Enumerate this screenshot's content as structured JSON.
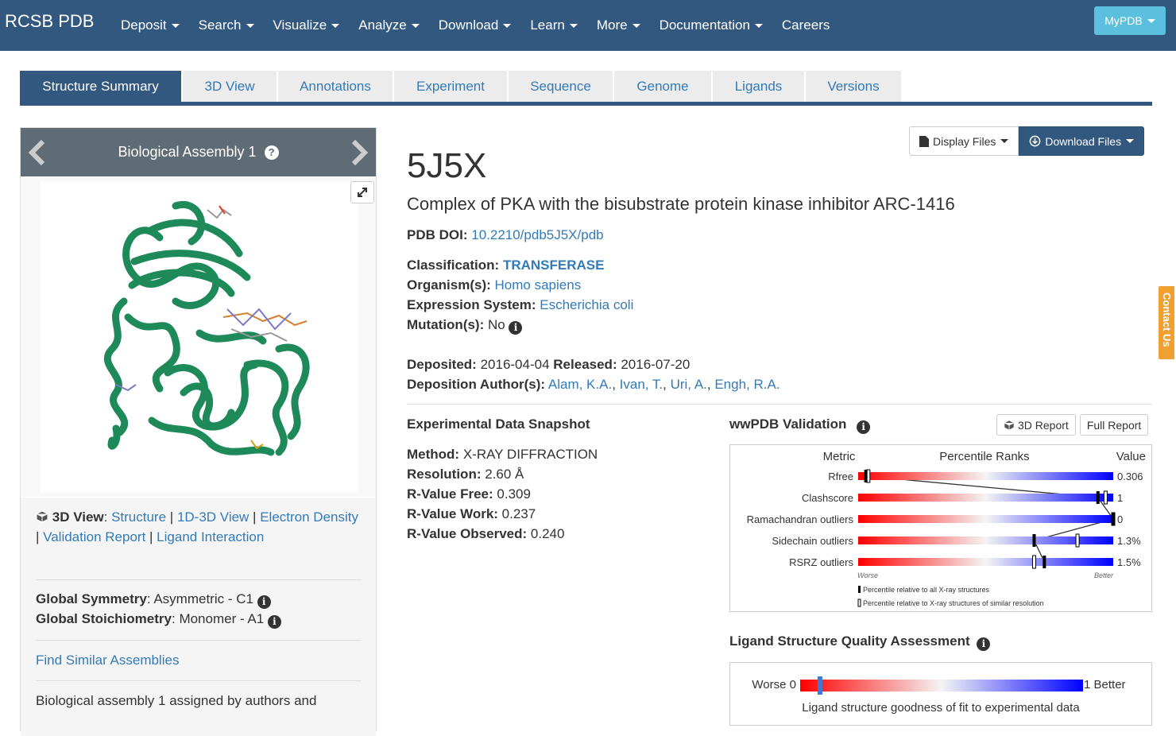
{
  "navbar": {
    "brand": "RCSB PDB",
    "items": [
      {
        "label": "Deposit",
        "caret": true
      },
      {
        "label": "Search",
        "caret": true
      },
      {
        "label": "Visualize",
        "caret": true
      },
      {
        "label": "Analyze",
        "caret": true
      },
      {
        "label": "Download",
        "caret": true
      },
      {
        "label": "Learn",
        "caret": true
      },
      {
        "label": "More",
        "caret": true
      },
      {
        "label": "Documentation",
        "caret": true
      },
      {
        "label": "Careers",
        "caret": false
      }
    ],
    "mypdb": "MyPDB"
  },
  "tabs": [
    "Structure Summary",
    "3D View",
    "Annotations",
    "Experiment",
    "Sequence",
    "Genome",
    "Ligands",
    "Versions"
  ],
  "assembly": {
    "title": "Biological Assembly 1",
    "help": "?",
    "view_label": "3D View",
    "view_links": [
      "Structure",
      "1D-3D View",
      "Electron Density",
      "Validation Report",
      "Ligand Interaction"
    ],
    "symmetry_label": "Global Symmetry",
    "symmetry_value": "Asymmetric - C1",
    "stoichiometry_label": "Global Stoichiometry",
    "stoichiometry_value": "Monomer - A1",
    "find_similar": "Find Similar Assemblies",
    "note": "Biological assembly 1 assigned by authors and"
  },
  "buttons": {
    "display_files": "Display Files",
    "download_files": "Download Files"
  },
  "entry": {
    "id": "5J5X",
    "title": "Complex of PKA with the bisubstrate protein kinase inhibitor ARC-1416",
    "doi_label": "PDB DOI:",
    "doi": "10.2210/pdb5J5X/pdb",
    "classification_label": "Classification:",
    "classification": "TRANSFERASE",
    "organism_label": "Organism(s):",
    "organism": "Homo sapiens",
    "expression_label": "Expression System:",
    "expression": "Escherichia coli",
    "mutation_label": "Mutation(s):",
    "mutation": "No",
    "deposited_label": "Deposited:",
    "deposited": "2016-04-04",
    "released_label": "Released:",
    "released": "2016-07-20",
    "authors_label": "Deposition Author(s):",
    "authors": [
      "Alam, K.A.",
      "Ivan, T.",
      "Uri, A.",
      "Engh, R.A."
    ]
  },
  "snapshot": {
    "title": "Experimental Data Snapshot",
    "rows": [
      {
        "label": "Method:",
        "value": "X-RAY DIFFRACTION"
      },
      {
        "label": "Resolution:",
        "value": "2.60 Å"
      },
      {
        "label": "R-Value Free:",
        "value": "0.309"
      },
      {
        "label": "R-Value Work:",
        "value": "0.237"
      },
      {
        "label": "R-Value Observed:",
        "value": "0.240"
      }
    ]
  },
  "validation": {
    "title": "wwPDB Validation",
    "report_3d": "3D Report",
    "full_report": "Full Report",
    "head_metric": "Metric",
    "head_ranks": "Percentile Ranks",
    "head_value": "Value",
    "worse": "Worse",
    "better": "Better",
    "legend_all": "Percentile relative to all X-ray structures",
    "legend_similar": "Percentile relative to X-ray structures of similar resolution",
    "metrics": [
      {
        "name": "Rfree",
        "value": "0.306",
        "pct_all": 3,
        "pct_similar": 4
      },
      {
        "name": "Clashscore",
        "value": "1",
        "pct_all": 94,
        "pct_similar": 97
      },
      {
        "name": "Ramachandran outliers",
        "value": "0",
        "pct_all": 100,
        "pct_similar": 100
      },
      {
        "name": "Sidechain outliers",
        "value": "1.3%",
        "pct_all": 69,
        "pct_similar": 86
      },
      {
        "name": "RSRZ outliers",
        "value": "1.5%",
        "pct_all": 73,
        "pct_similar": 69
      }
    ]
  },
  "ligand_quality": {
    "title": "Ligand Structure Quality Assessment",
    "worse_label": "Worse 0",
    "better_label": "1 Better",
    "marker_value": 0.07,
    "caption": "Ligand structure goodness of fit to experimental data"
  },
  "contact": "Contact Us"
}
